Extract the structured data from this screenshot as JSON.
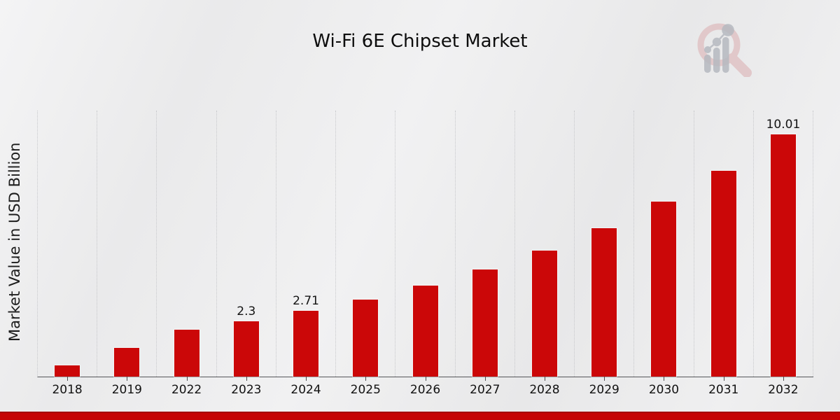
{
  "title": "Wi-Fi 6E Chipset Market",
  "ylabel": "Market Value in USD Billion",
  "logo": {
    "name": "market-research-future-watermark"
  },
  "colors": {
    "bar": "#cb0708",
    "grid": "#c7c8cb",
    "axis": "#55565a",
    "footer_main": "#c50405",
    "footer_edge": "#a30a0b",
    "logo_ring_pink": "#dbaeb0",
    "logo_gray": "#bcbfc5"
  },
  "chart_data": {
    "type": "bar",
    "title": "Wi-Fi 6E Chipset Market",
    "xlabel": "",
    "ylabel": "Market Value in USD Billion",
    "categories": [
      "2018",
      "2019",
      "2022",
      "2023",
      "2024",
      "2025",
      "2026",
      "2027",
      "2028",
      "2029",
      "2030",
      "2031",
      "2032"
    ],
    "values": [
      0.46,
      1.19,
      1.95,
      2.3,
      2.71,
      3.19,
      3.76,
      4.43,
      5.21,
      6.14,
      7.23,
      8.51,
      10.01
    ],
    "point_labels": [
      "",
      "",
      "",
      "2.3",
      "2.71",
      "",
      "",
      "",
      "",
      "",
      "",
      "",
      "10.01"
    ],
    "ylim": [
      0,
      11
    ],
    "grid": "vertical-dotted",
    "legend": "none",
    "bar_color": "#cb0708"
  }
}
